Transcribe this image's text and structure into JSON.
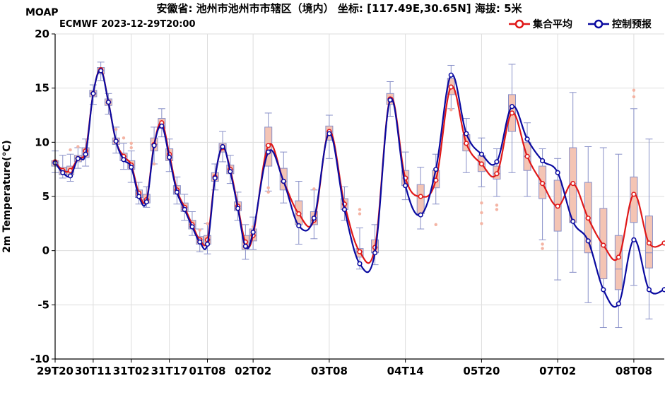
{
  "header": {
    "brand": "MOAP",
    "title": "安徽省: 池州市池州市市辖区（境内） 坐标: [117.49E,30.65N] 海拔: 5米",
    "model_run": "ECMWF 2023-12-29T20:00"
  },
  "chart_data": {
    "type": "line",
    "ylabel": "2m Temperature(℃)",
    "xlabel": "",
    "ylim": [
      -10,
      20
    ],
    "y_ticks": [
      -10,
      -5,
      0,
      5,
      10,
      15,
      20
    ],
    "x_tick_labels": [
      "29T20",
      "30T11",
      "31T02",
      "31T17",
      "01T08",
      "02T02",
      "03T08",
      "04T14",
      "05T20",
      "07T02",
      "08T08"
    ],
    "x_tick_hours": [
      0,
      15,
      30,
      45,
      60,
      78,
      108,
      138,
      168,
      198,
      228
    ],
    "grid": true,
    "legend_position": "top-right",
    "colors": {
      "ensemble_mean": "#e01818",
      "control": "#0a0aa0",
      "box_fill": "#f4c4b4",
      "box_stroke": "#8890c8",
      "outlier": "#f4b4a4",
      "grid": "#dddddd"
    },
    "series": [
      {
        "name": "集合平均",
        "x": [
          0,
          3,
          6,
          9,
          12,
          15,
          18,
          21,
          24,
          27,
          30,
          33,
          36,
          39,
          42,
          45,
          48,
          51,
          54,
          57,
          60,
          63,
          66,
          69,
          72,
          75,
          78,
          84,
          90,
          96,
          102,
          108,
          114,
          120,
          126,
          132,
          138,
          144,
          150,
          156,
          162,
          168,
          174,
          180,
          186,
          192,
          198,
          204,
          210,
          216,
          222,
          228,
          234,
          240
        ],
        "values": [
          8.2,
          7.4,
          7.4,
          8.5,
          9.2,
          14.5,
          16.7,
          13.7,
          10.1,
          8.7,
          7.9,
          5.3,
          4.7,
          9.8,
          11.8,
          8.9,
          5.6,
          4.0,
          2.4,
          1.0,
          1.0,
          6.8,
          9.5,
          7.5,
          4.1,
          0.8,
          1.4,
          9.7,
          6.4,
          3.4,
          2.8,
          11.0,
          4.3,
          -0.1,
          0.3,
          14.0,
          6.7,
          5.0,
          6.5,
          15.1,
          9.9,
          8.0,
          7.1,
          12.7,
          8.7,
          6.2,
          4.1,
          6.2,
          3.0,
          0.5,
          -0.6,
          5.2,
          0.7,
          0.7
        ]
      },
      {
        "name": "控制预报",
        "x": [
          0,
          3,
          6,
          9,
          12,
          15,
          18,
          21,
          24,
          27,
          30,
          33,
          36,
          39,
          42,
          45,
          48,
          51,
          54,
          57,
          60,
          63,
          66,
          69,
          72,
          75,
          78,
          84,
          90,
          96,
          102,
          108,
          114,
          120,
          126,
          132,
          138,
          144,
          150,
          156,
          162,
          168,
          174,
          180,
          186,
          192,
          198,
          204,
          210,
          216,
          222,
          228,
          234,
          240
        ],
        "values": [
          8.1,
          7.2,
          6.9,
          8.5,
          8.9,
          14.5,
          16.6,
          13.7,
          10.1,
          8.4,
          7.7,
          5.0,
          4.5,
          9.7,
          11.5,
          8.6,
          5.4,
          3.8,
          2.2,
          0.8,
          0.6,
          6.7,
          9.6,
          7.3,
          3.9,
          0.4,
          1.7,
          9.1,
          6.4,
          2.3,
          3.0,
          10.8,
          3.8,
          -1.2,
          -0.2,
          13.9,
          6.0,
          3.3,
          7.5,
          16.2,
          10.8,
          8.9,
          8.2,
          13.3,
          10.3,
          8.3,
          7.2,
          2.7,
          0.9,
          -3.6,
          -4.9,
          1.0,
          -3.6,
          -3.6
        ]
      }
    ],
    "boxes": [
      {
        "x": 0,
        "q1": 7.8,
        "q3": 8.3,
        "min": 7.2,
        "max": 9.2,
        "med": 8.1
      },
      {
        "x": 3,
        "q1": 7.0,
        "q3": 7.7,
        "min": 6.7,
        "max": 8.8,
        "med": 7.4
      },
      {
        "x": 6,
        "q1": 7.0,
        "q3": 7.8,
        "min": 6.4,
        "max": 8.9,
        "med": 7.4
      },
      {
        "x": 9,
        "q1": 8.2,
        "q3": 8.8,
        "min": 7.6,
        "max": 9.5,
        "med": 8.5
      },
      {
        "x": 12,
        "q1": 8.6,
        "q3": 9.5,
        "min": 7.8,
        "max": 10.3,
        "med": 9.2
      },
      {
        "x": 15,
        "q1": 14.2,
        "q3": 14.8,
        "min": 13.5,
        "max": 15.3,
        "med": 14.5
      },
      {
        "x": 18,
        "q1": 16.3,
        "q3": 16.9,
        "min": 15.7,
        "max": 17.4,
        "med": 16.6
      },
      {
        "x": 21,
        "q1": 13.4,
        "q3": 14.0,
        "min": 12.6,
        "max": 14.5,
        "med": 13.7
      },
      {
        "x": 24,
        "q1": 9.8,
        "q3": 10.4,
        "min": 9.0,
        "max": 11.4,
        "med": 10.1
      },
      {
        "x": 27,
        "q1": 8.3,
        "q3": 9.0,
        "min": 7.5,
        "max": 9.9,
        "med": 8.7
      },
      {
        "x": 30,
        "q1": 7.5,
        "q3": 8.3,
        "min": 6.3,
        "max": 9.2,
        "med": 7.9
      },
      {
        "x": 33,
        "q1": 4.9,
        "q3": 5.6,
        "min": 4.3,
        "max": 6.3,
        "med": 5.2
      },
      {
        "x": 36,
        "q1": 4.4,
        "q3": 5.2,
        "min": 4.0,
        "max": 5.9,
        "med": 4.7
      },
      {
        "x": 39,
        "q1": 9.2,
        "q3": 10.4,
        "min": 8.0,
        "max": 11.4,
        "med": 9.8
      },
      {
        "x": 42,
        "q1": 11.3,
        "q3": 12.2,
        "min": 10.5,
        "max": 13.1,
        "med": 11.7
      },
      {
        "x": 45,
        "q1": 8.3,
        "q3": 9.4,
        "min": 7.3,
        "max": 10.3,
        "med": 8.8
      },
      {
        "x": 48,
        "q1": 5.2,
        "q3": 6.0,
        "min": 4.3,
        "max": 6.8,
        "med": 5.6
      },
      {
        "x": 51,
        "q1": 3.6,
        "q3": 4.4,
        "min": 2.8,
        "max": 5.2,
        "med": 4.0
      },
      {
        "x": 54,
        "q1": 2.0,
        "q3": 2.8,
        "min": 1.4,
        "max": 3.6,
        "med": 2.4
      },
      {
        "x": 57,
        "q1": 0.6,
        "q3": 1.3,
        "min": -0.1,
        "max": 2.0,
        "med": 1.0
      },
      {
        "x": 60,
        "q1": 0.6,
        "q3": 1.4,
        "min": -0.3,
        "max": 2.5,
        "med": 1.0
      },
      {
        "x": 63,
        "q1": 6.4,
        "q3": 7.2,
        "min": 5.6,
        "max": 8.0,
        "med": 6.8
      },
      {
        "x": 66,
        "q1": 9.1,
        "q3": 9.9,
        "min": 8.2,
        "max": 11.0,
        "med": 9.5
      },
      {
        "x": 69,
        "q1": 7.1,
        "q3": 7.9,
        "min": 6.2,
        "max": 8.8,
        "med": 7.5
      },
      {
        "x": 72,
        "q1": 3.7,
        "q3": 4.5,
        "min": 2.8,
        "max": 5.4,
        "med": 4.1
      },
      {
        "x": 75,
        "q1": 0.1,
        "q3": 1.4,
        "min": -0.8,
        "max": 2.4,
        "med": 0.8
      },
      {
        "x": 78,
        "q1": 0.9,
        "q3": 2.0,
        "min": 0.1,
        "max": 3.1,
        "med": 1.4
      },
      {
        "x": 84,
        "q1": 7.8,
        "q3": 11.4,
        "min": 5.5,
        "max": 12.7,
        "med": 9.7
      },
      {
        "x": 90,
        "q1": 5.6,
        "q3": 7.6,
        "min": 4.4,
        "max": 9.1,
        "med": 6.4
      },
      {
        "x": 96,
        "q1": 2.4,
        "q3": 4.6,
        "min": 0.6,
        "max": 6.4,
        "med": 3.4
      },
      {
        "x": 102,
        "q1": 2.4,
        "q3": 3.6,
        "min": 1.1,
        "max": 5.6,
        "med": 2.8
      },
      {
        "x": 108,
        "q1": 10.2,
        "q3": 11.5,
        "min": 8.5,
        "max": 12.5,
        "med": 11.0
      },
      {
        "x": 114,
        "q1": 3.8,
        "q3": 4.8,
        "min": 2.8,
        "max": 5.9,
        "med": 4.3
      },
      {
        "x": 120,
        "q1": -0.6,
        "q3": 0.2,
        "min": -1.7,
        "max": 2.1,
        "med": -0.1
      },
      {
        "x": 126,
        "q1": -0.2,
        "q3": 1.0,
        "min": -1.3,
        "max": 2.4,
        "med": 0.3
      },
      {
        "x": 132,
        "q1": 13.5,
        "q3": 14.5,
        "min": 12.4,
        "max": 15.6,
        "med": 14.0
      },
      {
        "x": 138,
        "q1": 6.0,
        "q3": 7.4,
        "min": 4.7,
        "max": 9.1,
        "med": 6.7
      },
      {
        "x": 144,
        "q1": 3.4,
        "q3": 6.1,
        "min": 2.0,
        "max": 7.7,
        "med": 5.0
      },
      {
        "x": 150,
        "q1": 5.8,
        "q3": 7.4,
        "min": 4.3,
        "max": 8.9,
        "med": 6.5
      },
      {
        "x": 156,
        "q1": 14.4,
        "q3": 15.9,
        "min": 13.1,
        "max": 17.1,
        "med": 15.1
      },
      {
        "x": 162,
        "q1": 9.2,
        "q3": 10.7,
        "min": 7.2,
        "max": 12.2,
        "med": 9.9
      },
      {
        "x": 168,
        "q1": 7.3,
        "q3": 8.8,
        "min": 5.9,
        "max": 10.4,
        "med": 8.0
      },
      {
        "x": 174,
        "q1": 6.6,
        "q3": 7.8,
        "min": 5.0,
        "max": 9.4,
        "med": 7.1
      },
      {
        "x": 180,
        "q1": 11.0,
        "q3": 14.4,
        "min": 7.2,
        "max": 17.2,
        "med": 12.7
      },
      {
        "x": 186,
        "q1": 7.4,
        "q3": 10.0,
        "min": 5.0,
        "max": 11.8,
        "med": 8.7
      },
      {
        "x": 192,
        "q1": 4.8,
        "q3": 7.8,
        "min": 1.0,
        "max": 9.4,
        "med": 6.2
      },
      {
        "x": 198,
        "q1": 1.8,
        "q3": 6.5,
        "min": -2.7,
        "max": 8.5,
        "med": 4.1
      },
      {
        "x": 204,
        "q1": 2.6,
        "q3": 9.5,
        "min": -2.0,
        "max": 14.6,
        "med": 6.2
      },
      {
        "x": 210,
        "q1": -0.2,
        "q3": 6.3,
        "min": -4.8,
        "max": 9.6,
        "med": 3.0
      },
      {
        "x": 216,
        "q1": -2.6,
        "q3": 3.9,
        "min": -7.1,
        "max": 9.5,
        "med": 0.5
      },
      {
        "x": 222,
        "q1": -3.6,
        "q3": 1.4,
        "min": -7.1,
        "max": 8.9,
        "med": -1.7
      },
      {
        "x": 228,
        "q1": 2.6,
        "q3": 6.8,
        "min": -3.2,
        "max": 13.1,
        "med": 5.2
      },
      {
        "x": 234,
        "q1": -1.6,
        "q3": 3.2,
        "min": -6.3,
        "max": 10.3,
        "med": -0.2
      }
    ],
    "outliers": [
      {
        "x": 6,
        "y": 9.3
      },
      {
        "x": 9,
        "y": 9.6
      },
      {
        "x": 24,
        "y": 11.2
      },
      {
        "x": 27,
        "y": 10.4
      },
      {
        "x": 30,
        "y": 9.9
      },
      {
        "x": 30,
        "y": 9.5
      },
      {
        "x": 39,
        "y": 8.0
      },
      {
        "x": 54,
        "y": 2.2
      },
      {
        "x": 54,
        "y": 2.6
      },
      {
        "x": 57,
        "y": 1.9
      },
      {
        "x": 60,
        "y": 2.5
      },
      {
        "x": 78,
        "y": 2.2
      },
      {
        "x": 84,
        "y": 5.8
      },
      {
        "x": 84,
        "y": 5.4
      },
      {
        "x": 102,
        "y": 5.7
      },
      {
        "x": 120,
        "y": 3.4
      },
      {
        "x": 120,
        "y": 3.8
      },
      {
        "x": 150,
        "y": 2.4
      },
      {
        "x": 156,
        "y": 13.0
      },
      {
        "x": 168,
        "y": 4.4
      },
      {
        "x": 168,
        "y": 2.5
      },
      {
        "x": 168,
        "y": 3.5
      },
      {
        "x": 174,
        "y": 4.2
      },
      {
        "x": 174,
        "y": 3.8
      },
      {
        "x": 192,
        "y": 0.2
      },
      {
        "x": 192,
        "y": 0.6
      },
      {
        "x": 228,
        "y": 14.2
      },
      {
        "x": 228,
        "y": 14.8
      }
    ]
  }
}
